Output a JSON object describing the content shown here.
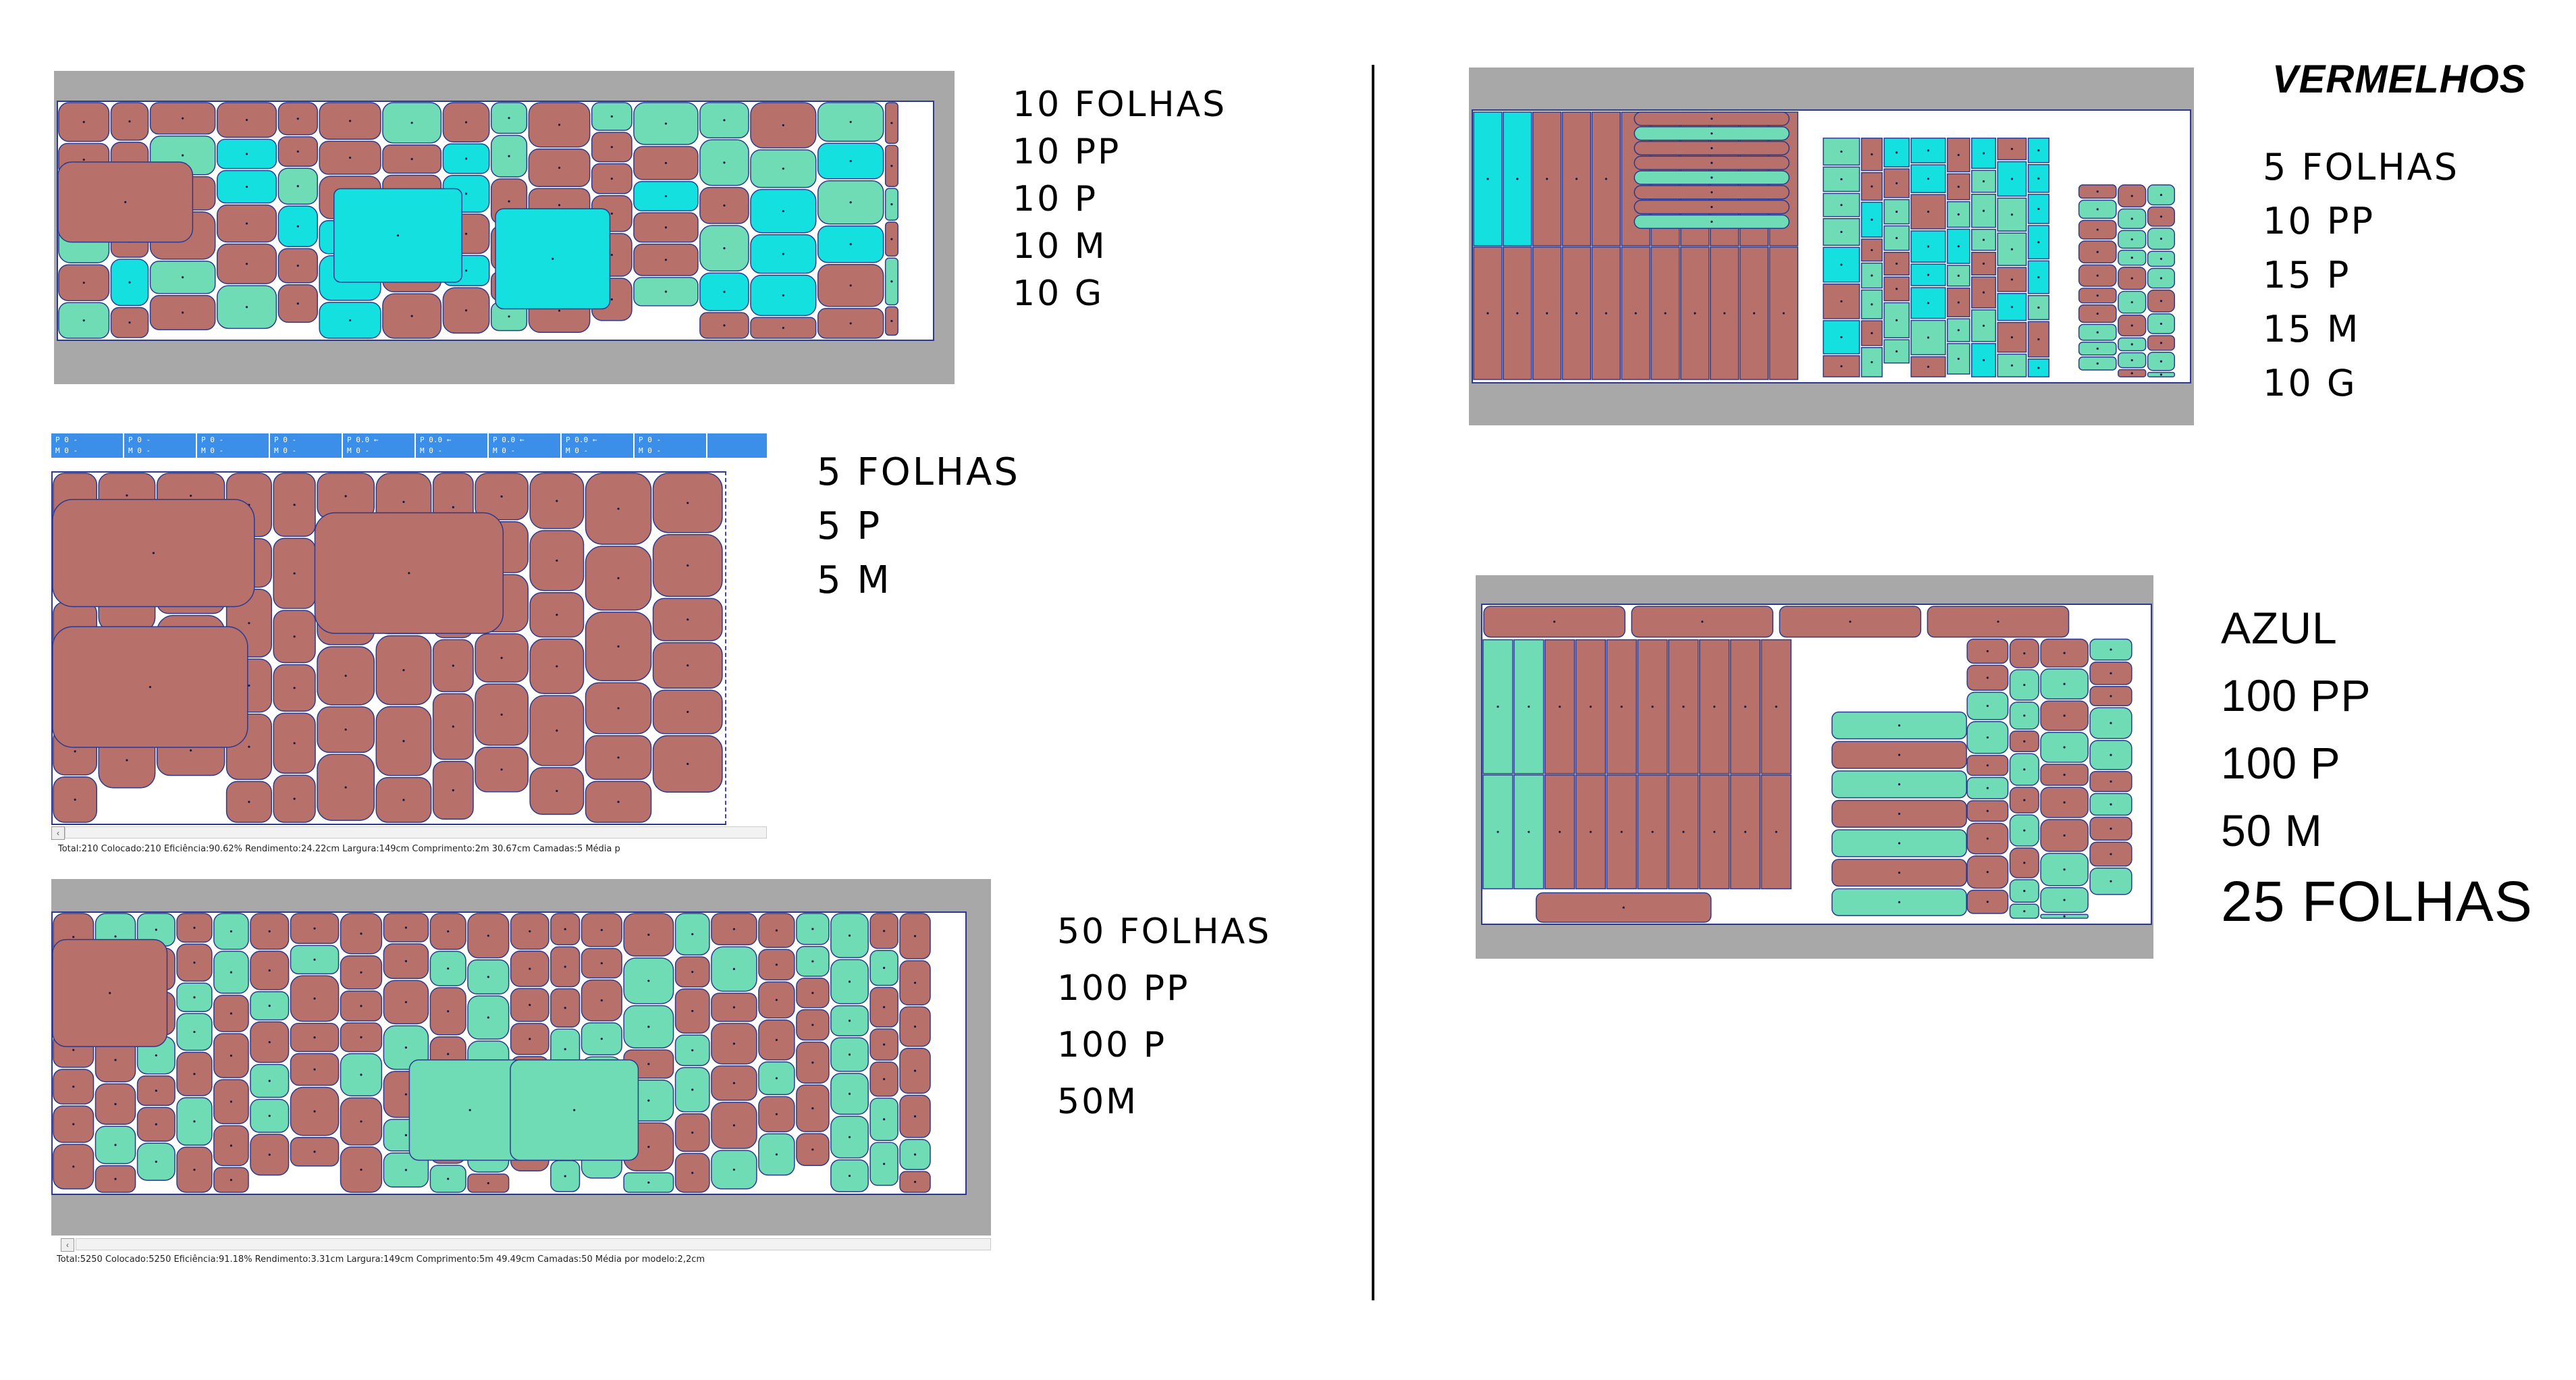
{
  "colors": {
    "red": "#b8706b",
    "teal": "#6fdcb5",
    "cyan": "#14e0e0",
    "outline": "#2b3a8f",
    "gray": "#a8a8a8",
    "status_blue": "#3b8fe8"
  },
  "marker1": {
    "lines": [
      "10 FOLHAS",
      "10 PP",
      "10 P",
      "10 M",
      "10 G"
    ]
  },
  "marker2": {
    "lines": [
      "5 FOLHAS",
      "5 P",
      "5 M"
    ],
    "status": "Total:210  Colocado:210  Eficiência:90.62%  Rendimento:24.22cm  Largura:149cm  Comprimento:2m 30.67cm  Camadas:5  Média p"
  },
  "marker3": {
    "lines": [
      "50 FOLHAS",
      "100 PP",
      "100 P",
      "50M"
    ],
    "status": "Total:5250  Colocado:5250  Eficiência:91.18%  Rendimento:3.31cm  Largura:149cm  Comprimento:5m 49.49cm  Camadas:50  Média por modelo:2,2cm"
  },
  "marker4": {
    "title": "VERMELHOS",
    "lines": [
      "5 FOLHAS",
      "10 PP",
      "15 P",
      "15 M",
      "10 G"
    ]
  },
  "marker5": {
    "lines": [
      "AZUL",
      "100 PP",
      "100 P",
      "50 M"
    ],
    "last_line": "25 FOLHAS"
  }
}
